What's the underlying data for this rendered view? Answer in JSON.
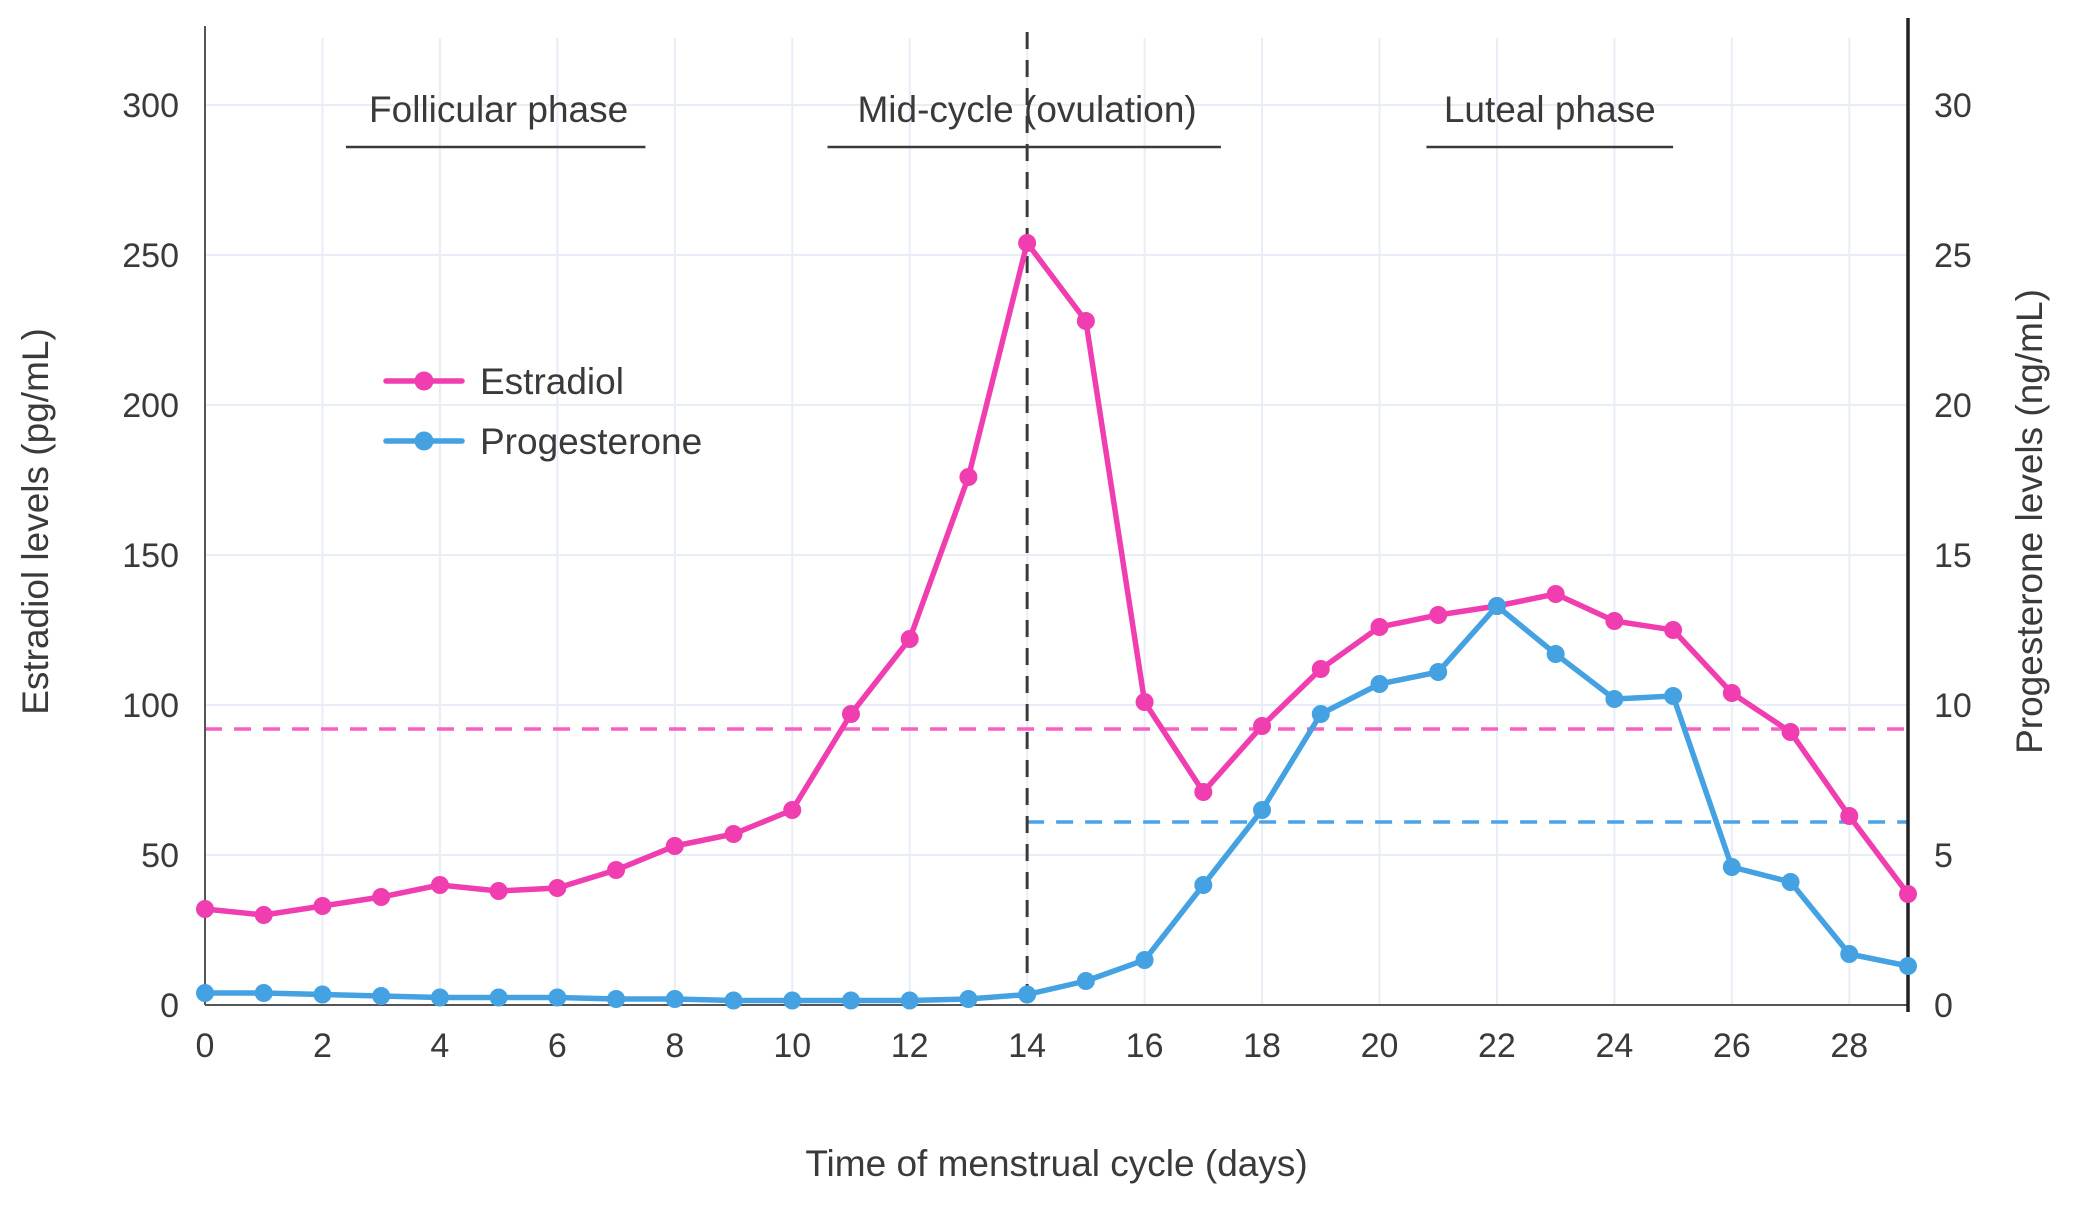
{
  "page": {
    "background_color": "#ffffff",
    "text_color": "#3a3a3a"
  },
  "chart_data": {
    "type": "line",
    "title": "",
    "xlabel": "Time of menstrual cycle (days)",
    "ylabel_left": "Estradiol levels (pg/mL)",
    "ylabel_right": "Progesterone levels (ng/mL)",
    "xlim": [
      0,
      29
    ],
    "ylim_left": [
      0,
      300
    ],
    "ylim_right": [
      0,
      30
    ],
    "xticks": [
      0,
      2,
      4,
      6,
      8,
      10,
      12,
      14,
      16,
      18,
      20,
      22,
      24,
      26,
      28
    ],
    "yticks_left": [
      0,
      50,
      100,
      150,
      200,
      250,
      300
    ],
    "yticks_right": [
      0,
      5,
      10,
      15,
      20,
      25,
      30
    ],
    "grid": true,
    "x": [
      0,
      1,
      2,
      3,
      4,
      5,
      6,
      7,
      8,
      9,
      10,
      11,
      12,
      13,
      14,
      15,
      16,
      17,
      18,
      19,
      20,
      21,
      22,
      23,
      24,
      25,
      26,
      27,
      28,
      29
    ],
    "series": [
      {
        "name": "Estradiol",
        "axis": "left",
        "color": "#f03eb1",
        "values": [
          32,
          30,
          33,
          36,
          40,
          38,
          39,
          45,
          53,
          57,
          65,
          97,
          122,
          176,
          254,
          228,
          101,
          71,
          93,
          112,
          126,
          130,
          133,
          137,
          128,
          125,
          104,
          91,
          63,
          37
        ]
      },
      {
        "name": "Progesterone",
        "axis": "right",
        "color": "#44a2e2",
        "values": [
          0.4,
          0.4,
          0.35,
          0.3,
          0.25,
          0.25,
          0.25,
          0.2,
          0.2,
          0.15,
          0.15,
          0.15,
          0.15,
          0.2,
          0.35,
          0.8,
          1.5,
          4.0,
          6.5,
          9.7,
          10.7,
          11.1,
          13.3,
          11.7,
          10.2,
          10.3,
          4.6,
          4.1,
          1.7,
          1.3
        ]
      }
    ],
    "legend": {
      "position": "upper-left-inside",
      "entries": [
        "Estradiol",
        "Progesterone"
      ]
    },
    "annotations": {
      "phases": [
        {
          "label": "Follicular phase",
          "center_day": 5.0,
          "underline_days": [
            2.4,
            7.5
          ]
        },
        {
          "label": "Mid-cycle (ovulation)",
          "center_day": 14.0,
          "underline_days": [
            10.6,
            17.3
          ]
        },
        {
          "label": "Luteal phase",
          "center_day": 22.9,
          "underline_days": [
            20.8,
            25.0
          ]
        }
      ],
      "vline": {
        "x": 14,
        "style": "dashed",
        "color": "#3a3a3a"
      },
      "hlines": [
        {
          "value": 92,
          "axis": "left",
          "x_range": [
            0,
            29
          ],
          "style": "dashed",
          "color": "#f75fc5"
        },
        {
          "value": 6.1,
          "axis": "right",
          "x_range": [
            14,
            29
          ],
          "style": "dashed",
          "color": "#4aa3e8"
        }
      ]
    },
    "style": {
      "grid_color": "#e9edf7",
      "left_axis_color": "#555555",
      "bottom_axis_color": "#555555",
      "right_axis_color": "#222222"
    }
  }
}
